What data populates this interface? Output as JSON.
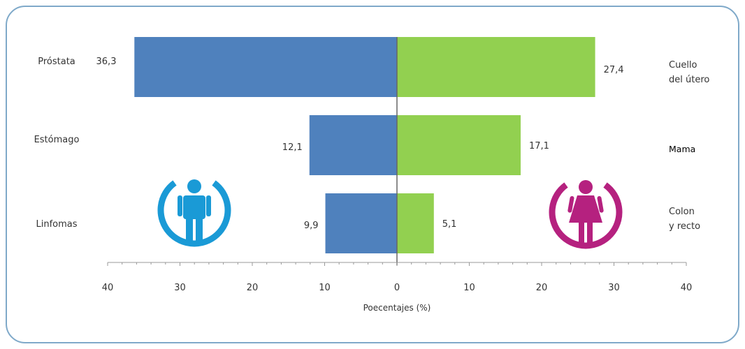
{
  "chart_data": {
    "type": "bar",
    "orientation": "horizontal-diverging",
    "xlabel": "Poecentajes (%)",
    "xlim": [
      -40,
      40
    ],
    "x_ticks": [
      "40",
      "30",
      "20",
      "10",
      "0",
      "10",
      "20",
      "30",
      "40"
    ],
    "colors": {
      "men": "#4f81bd",
      "women": "#92d050",
      "men_icon": "#1a9ad6",
      "women_icon": "#b5217f"
    },
    "icons": [
      "male-person-icon",
      "female-person-icon"
    ],
    "rows": [
      {
        "men_label": "Próstata",
        "men_value": 36.3,
        "men_value_text": "36,3",
        "women_label_lines": [
          "Cuello",
          "del útero"
        ],
        "women_value": 27.4,
        "women_value_text": "27,4"
      },
      {
        "men_label": "Estómago",
        "men_value": 12.1,
        "men_value_text": "12,1",
        "women_label_lines": [
          "Mama"
        ],
        "women_value": 17.1,
        "women_value_text": "17,1"
      },
      {
        "men_label": "Linfomas",
        "men_value": 9.9,
        "men_value_text": "9,9",
        "women_label_lines": [
          "Colon",
          "y recto"
        ],
        "women_value": 5.1,
        "women_value_text": "5,1"
      }
    ]
  }
}
